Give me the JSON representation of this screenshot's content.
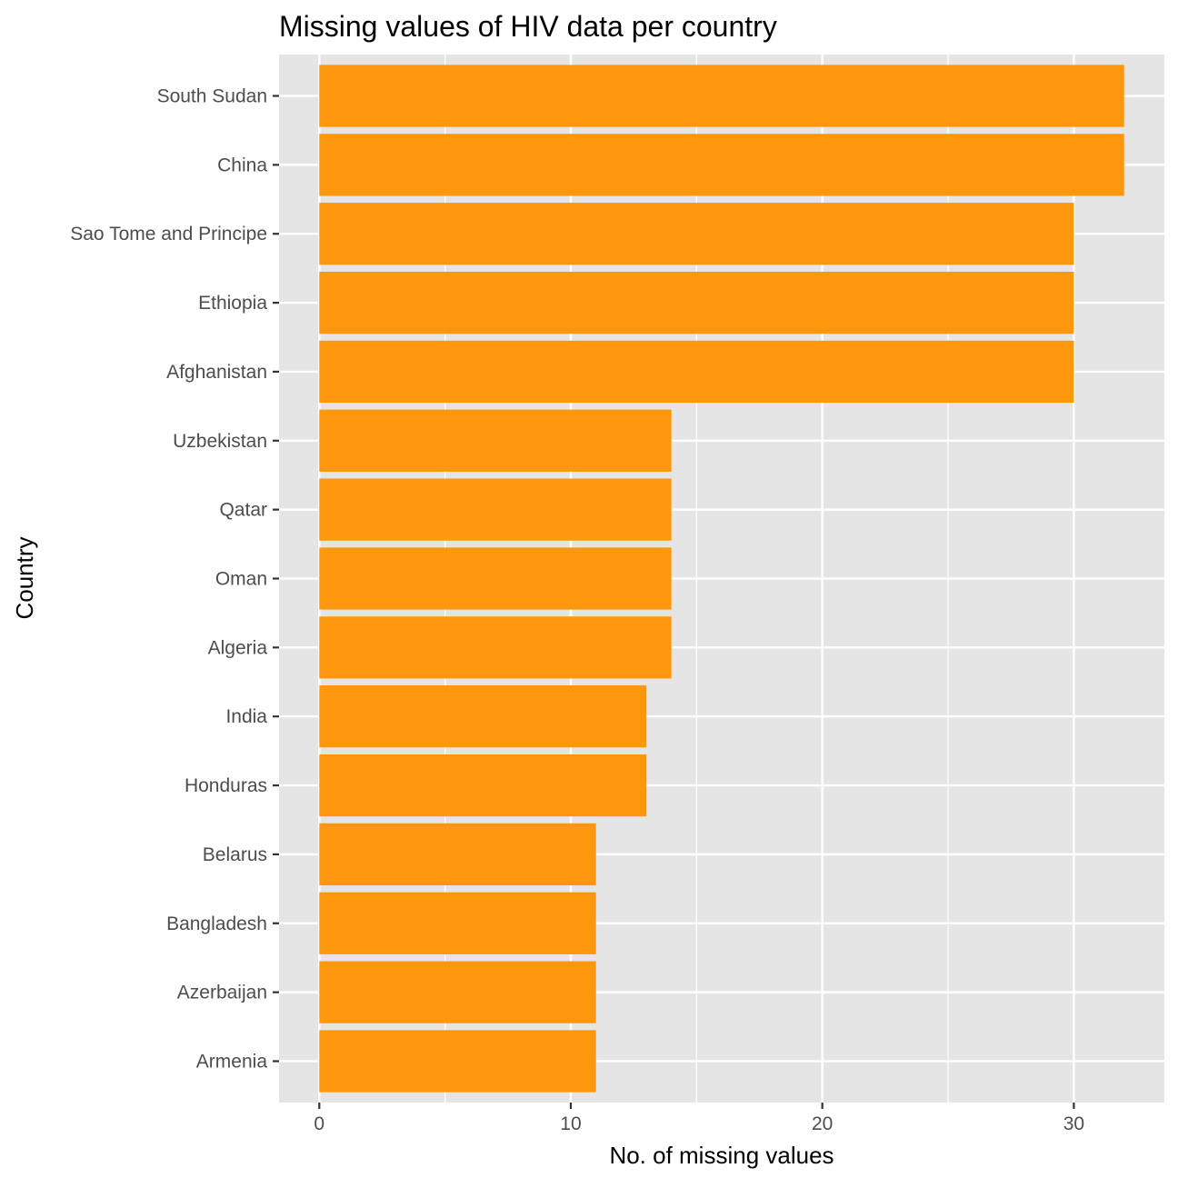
{
  "chart_data": {
    "type": "bar",
    "orientation": "horizontal",
    "title": "Missing values of HIV data per country",
    "xlabel": "No. of missing values",
    "ylabel": "Country",
    "categories": [
      "South Sudan",
      "China",
      "Sao Tome and Principe",
      "Ethiopia",
      "Afghanistan",
      "Uzbekistan",
      "Qatar",
      "Oman",
      "Algeria",
      "India",
      "Honduras",
      "Belarus",
      "Bangladesh",
      "Azerbaijan",
      "Armenia"
    ],
    "values": [
      32,
      32,
      30,
      30,
      30,
      14,
      14,
      14,
      14,
      13,
      13,
      11,
      11,
      11,
      11
    ],
    "xlim": [
      -1.6,
      33.6
    ],
    "xticks": [
      0,
      10,
      20,
      30
    ],
    "grid": true,
    "legend": "none",
    "colors": {
      "bar": "#fd970e",
      "panel": "#e5e5e5",
      "grid": "#ffffff",
      "tick_text": "#4d4d4d",
      "tick_mark": "#333333"
    }
  }
}
